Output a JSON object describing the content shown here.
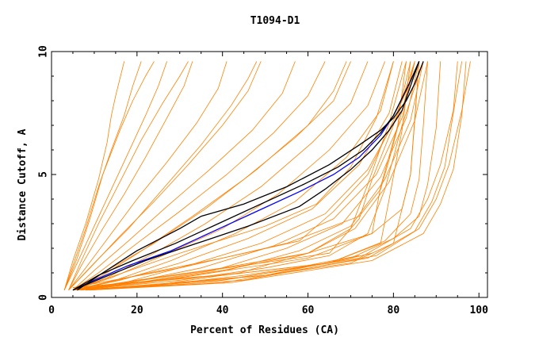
{
  "chart_data": {
    "type": "line",
    "title": "T1094-D1",
    "xlabel": "Percent of Residues (CA)",
    "ylabel": "Distance Cutoff, A",
    "xlim": [
      0,
      102
    ],
    "ylim": [
      0,
      10
    ],
    "x_ticks": [
      "0",
      "20",
      "40",
      "60",
      "80",
      "100"
    ],
    "y_ticks": [
      "0",
      "5",
      "10"
    ],
    "grid": false,
    "colors": {
      "bundle": "#ff8000",
      "highlight_blue": "#0000ff",
      "highlight_black": "#000000",
      "frame": "#000000"
    },
    "series": [
      {
        "color": "#ff8000",
        "x": [
          3,
          5,
          8,
          11,
          13,
          14,
          15,
          16,
          17
        ],
        "y": [
          0.3,
          1.5,
          3.0,
          4.8,
          6.3,
          7.4,
          8.2,
          8.9,
          9.6
        ]
      },
      {
        "color": "#ff8000",
        "x": [
          3,
          5,
          8,
          11,
          14,
          17,
          19,
          21
        ],
        "y": [
          0.3,
          1.3,
          2.8,
          4.5,
          6.0,
          7.4,
          8.6,
          9.6
        ]
      },
      {
        "color": "#ff8000",
        "x": [
          3,
          6,
          10,
          14,
          18,
          22,
          25,
          27
        ],
        "y": [
          0.3,
          1.4,
          2.9,
          4.4,
          5.9,
          7.4,
          8.6,
          9.6
        ]
      },
      {
        "color": "#ff8000",
        "x": [
          4,
          7,
          12,
          17,
          22,
          27,
          31,
          33
        ],
        "y": [
          0.3,
          1.3,
          2.8,
          4.2,
          5.7,
          7.3,
          8.6,
          9.6
        ]
      },
      {
        "color": "#ff8000",
        "x": [
          4,
          8,
          14,
          20,
          27,
          34,
          39,
          41
        ],
        "y": [
          0.3,
          1.2,
          2.6,
          4.0,
          5.5,
          7.1,
          8.5,
          9.6
        ]
      },
      {
        "color": "#ff8000",
        "x": [
          4,
          9,
          16,
          24,
          32,
          40,
          46,
          49
        ],
        "y": [
          0.3,
          1.2,
          2.5,
          3.9,
          5.4,
          7.0,
          8.4,
          9.6
        ]
      },
      {
        "color": "#ff8000",
        "x": [
          5,
          10,
          18,
          27,
          37,
          47,
          54,
          57
        ],
        "y": [
          0.3,
          1.1,
          2.3,
          3.7,
          5.2,
          6.8,
          8.3,
          9.6
        ]
      },
      {
        "color": "#ff8000",
        "x": [
          5,
          11,
          20,
          30,
          41,
          52,
          60,
          64
        ],
        "y": [
          0.3,
          1.0,
          2.2,
          3.5,
          5.0,
          6.7,
          8.2,
          9.6
        ]
      },
      {
        "color": "#ff8000",
        "x": [
          5,
          12,
          22,
          33,
          45,
          57,
          66,
          70
        ],
        "y": [
          0.3,
          0.9,
          2.0,
          3.3,
          4.8,
          6.5,
          8.0,
          9.6
        ]
      },
      {
        "color": "#ff8000",
        "x": [
          5,
          13,
          24,
          36,
          49,
          61,
          70,
          74
        ],
        "y": [
          0.3,
          0.8,
          1.8,
          3.0,
          4.5,
          6.3,
          7.9,
          9.6
        ]
      },
      {
        "color": "#ff8000",
        "x": [
          5,
          14,
          26,
          40,
          53,
          65,
          74,
          78
        ],
        "y": [
          0.3,
          0.8,
          1.7,
          2.8,
          4.2,
          6.0,
          7.8,
          9.6
        ]
      },
      {
        "color": "#ff8000",
        "x": [
          5,
          15,
          28,
          43,
          57,
          69,
          77,
          80
        ],
        "y": [
          0.3,
          0.7,
          1.5,
          2.6,
          3.9,
          5.7,
          7.6,
          9.6
        ]
      },
      {
        "color": "#ff8000",
        "x": [
          5,
          16,
          30,
          46,
          61,
          72,
          79,
          82
        ],
        "y": [
          0.3,
          0.7,
          1.4,
          2.4,
          3.6,
          5.4,
          7.5,
          9.6
        ]
      },
      {
        "color": "#ff8000",
        "x": [
          5,
          17,
          32,
          49,
          64,
          74,
          81,
          84
        ],
        "y": [
          0.3,
          0.6,
          1.3,
          2.2,
          3.4,
          5.2,
          7.4,
          9.6
        ]
      },
      {
        "color": "#ff8000",
        "x": [
          5,
          18,
          35,
          52,
          66,
          76,
          82,
          85
        ],
        "y": [
          0.3,
          0.6,
          1.2,
          2.1,
          3.2,
          5.0,
          7.3,
          9.6
        ]
      },
      {
        "color": "#ff8000",
        "x": [
          5,
          20,
          38,
          55,
          68,
          77,
          83,
          86
        ],
        "y": [
          0.3,
          0.6,
          1.1,
          2.0,
          3.0,
          4.9,
          7.3,
          9.6
        ]
      },
      {
        "color": "#ff8000",
        "x": [
          6,
          22,
          41,
          58,
          70,
          78,
          84,
          87
        ],
        "y": [
          0.3,
          0.6,
          1.1,
          1.9,
          2.9,
          4.8,
          7.2,
          9.6
        ]
      },
      {
        "color": "#ff8000",
        "x": [
          6,
          24,
          44,
          60,
          71,
          79,
          85,
          88
        ],
        "y": [
          0.3,
          0.5,
          1.0,
          1.8,
          2.8,
          4.7,
          7.2,
          9.6
        ]
      },
      {
        "color": "#ff8000",
        "x": [
          5,
          20,
          40,
          60,
          75,
          77,
          81,
          83
        ],
        "y": [
          0.3,
          0.7,
          1.2,
          1.8,
          2.6,
          4.5,
          7.0,
          9.6
        ]
      },
      {
        "color": "#ff8000",
        "x": [
          6,
          25,
          45,
          65,
          72,
          75,
          80,
          85
        ],
        "y": [
          0.3,
          0.8,
          1.3,
          1.8,
          3.2,
          4.8,
          7.0,
          9.6
        ]
      },
      {
        "color": "#ff8000",
        "x": [
          6,
          20,
          40,
          58,
          66,
          74,
          80,
          86
        ],
        "y": [
          0.3,
          0.9,
          1.6,
          2.3,
          3.5,
          5.0,
          7.2,
          9.6
        ]
      },
      {
        "color": "#ff8000",
        "x": [
          5,
          14,
          24,
          36,
          48,
          60,
          66,
          69
        ],
        "y": [
          0.3,
          1.2,
          2.2,
          3.6,
          5.2,
          7.0,
          8.4,
          9.6
        ]
      },
      {
        "color": "#ff8000",
        "x": [
          4,
          10,
          18,
          26,
          35,
          42,
          46,
          48
        ],
        "y": [
          0.3,
          1.4,
          2.8,
          4.4,
          6.2,
          7.8,
          8.9,
          9.6
        ]
      },
      {
        "color": "#ff8000",
        "x": [
          4,
          7,
          11,
          16,
          21,
          26,
          30,
          32
        ],
        "y": [
          0.3,
          1.5,
          3.0,
          4.7,
          6.4,
          7.9,
          9.0,
          9.6
        ]
      },
      {
        "color": "#ff8000",
        "x": [
          3,
          6,
          9,
          12,
          16,
          19,
          22,
          24
        ],
        "y": [
          0.3,
          1.6,
          3.2,
          5.0,
          6.8,
          8.0,
          9.0,
          9.6
        ]
      },
      {
        "color": "#ff8000",
        "x": [
          5,
          15,
          30,
          50,
          62,
          70,
          76,
          80
        ],
        "y": [
          0.3,
          0.9,
          1.8,
          2.9,
          3.8,
          5.3,
          7.3,
          9.6
        ]
      },
      {
        "color": "#ff8000",
        "x": [
          6,
          30,
          50,
          65,
          74,
          78,
          82,
          87
        ],
        "y": [
          0.3,
          0.7,
          1.2,
          1.7,
          2.6,
          4.4,
          7.0,
          9.6
        ]
      },
      {
        "color": "#ff8000",
        "x": [
          6,
          25,
          45,
          65,
          77,
          79,
          82,
          84
        ],
        "y": [
          0.3,
          0.5,
          0.9,
          1.4,
          2.2,
          4.0,
          6.8,
          9.6
        ]
      },
      {
        "color": "#ff8000",
        "x": [
          6,
          20,
          40,
          60,
          70,
          74,
          79,
          83
        ],
        "y": [
          0.3,
          0.6,
          1.1,
          1.8,
          2.8,
          4.6,
          7.1,
          9.6
        ]
      },
      {
        "color": "#ff8000",
        "x": [
          5,
          30,
          60,
          75,
          82,
          84,
          85,
          86
        ],
        "y": [
          0.3,
          0.8,
          1.6,
          2.6,
          3.6,
          5.0,
          7.2,
          9.6
        ]
      },
      {
        "color": "#ff8000",
        "x": [
          6,
          40,
          65,
          78,
          84,
          86,
          87,
          88
        ],
        "y": [
          0.3,
          0.7,
          1.4,
          2.3,
          3.4,
          4.8,
          7.0,
          9.6
        ]
      },
      {
        "color": "#ff8000",
        "x": [
          7,
          50,
          70,
          80,
          86,
          88,
          90,
          91
        ],
        "y": [
          0.3,
          0.9,
          1.6,
          2.4,
          3.3,
          4.6,
          6.9,
          9.6
        ]
      },
      {
        "color": "#ff8000",
        "x": [
          5,
          30,
          55,
          72,
          77,
          79,
          82,
          85
        ],
        "y": [
          0.4,
          1.2,
          2.2,
          3.3,
          4.4,
          5.6,
          7.6,
          9.6
        ]
      },
      {
        "color": "#ff8000",
        "x": [
          5,
          25,
          50,
          70,
          80,
          84,
          86
        ],
        "y": [
          0.3,
          0.5,
          0.9,
          1.4,
          2.2,
          5.0,
          9.6
        ]
      },
      {
        "color": "#ff8000",
        "x": [
          8,
          40,
          72,
          84,
          88,
          91,
          94,
          95
        ],
        "y": [
          0.3,
          0.7,
          1.6,
          2.8,
          4.0,
          5.4,
          7.6,
          9.6
        ]
      },
      {
        "color": "#ff8000",
        "x": [
          9,
          45,
          76,
          86,
          90,
          93,
          96,
          98
        ],
        "y": [
          0.3,
          0.7,
          1.7,
          2.8,
          4.0,
          5.4,
          7.6,
          9.6
        ]
      },
      {
        "color": "#ff8000",
        "x": [
          8,
          40,
          74,
          85,
          89,
          92,
          94,
          96
        ],
        "y": [
          0.3,
          0.6,
          1.6,
          2.7,
          3.9,
          5.3,
          7.5,
          9.6
        ]
      },
      {
        "color": "#ff8000",
        "x": [
          9,
          42,
          75,
          87,
          91,
          94,
          96,
          97
        ],
        "y": [
          0.3,
          0.6,
          1.5,
          2.6,
          3.8,
          5.2,
          7.4,
          9.6
        ]
      },
      {
        "color": "#ff8000",
        "x": [
          5,
          20,
          40,
          60,
          72
        ],
        "y": [
          0.4,
          0.6,
          0.9,
          1.3,
          1.7
        ]
      },
      {
        "color": "#ff8000",
        "x": [
          5,
          25,
          45,
          65,
          75
        ],
        "y": [
          0.4,
          0.7,
          1.0,
          1.4,
          1.8
        ]
      },
      {
        "color": "#0000ff",
        "x": [
          5,
          10,
          18,
          28,
          38,
          48,
          58,
          66,
          72,
          77,
          80,
          82,
          84,
          86
        ],
        "y": [
          0.3,
          0.7,
          1.3,
          1.9,
          2.7,
          3.5,
          4.3,
          5.0,
          5.7,
          6.6,
          7.4,
          8.1,
          8.8,
          9.6
        ]
      },
      {
        "color": "#000000",
        "x": [
          6,
          12,
          20,
          30,
          35,
          45,
          55,
          65,
          72,
          77,
          80,
          83,
          85,
          87
        ],
        "y": [
          0.3,
          1.0,
          1.9,
          2.8,
          3.3,
          3.8,
          4.5,
          5.4,
          6.2,
          6.8,
          7.3,
          8.0,
          8.7,
          9.6
        ]
      },
      {
        "color": "#000000",
        "x": [
          5,
          11,
          19,
          29,
          39,
          49,
          59,
          67,
          73,
          77,
          80,
          82,
          84,
          86
        ],
        "y": [
          0.3,
          0.9,
          1.5,
          2.2,
          3.0,
          3.8,
          4.6,
          5.3,
          6.0,
          6.7,
          7.4,
          8.1,
          8.8,
          9.6
        ]
      },
      {
        "color": "#000000",
        "x": [
          5,
          12,
          22,
          34,
          46,
          58,
          64,
          70,
          75,
          79,
          82,
          84,
          86
        ],
        "y": [
          0.3,
          0.8,
          1.5,
          2.2,
          2.9,
          3.7,
          4.4,
          5.2,
          6.0,
          6.8,
          7.6,
          8.6,
          9.6
        ]
      }
    ]
  }
}
